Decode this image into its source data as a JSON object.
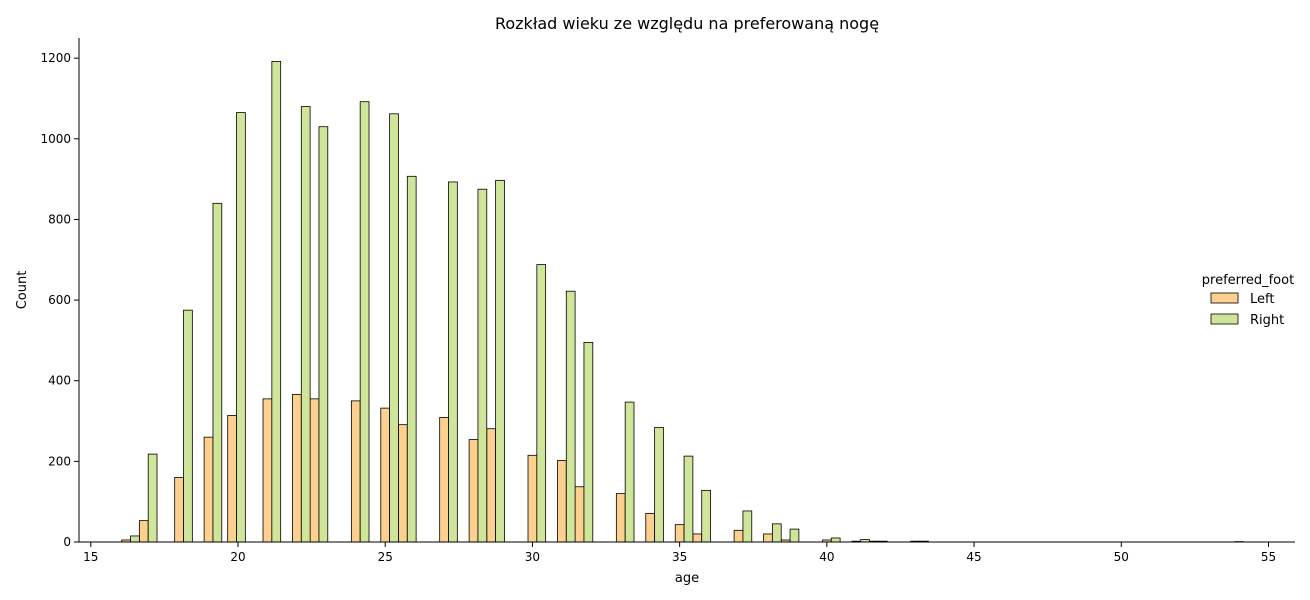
{
  "chart_data": {
    "type": "bar",
    "title": "Rozkład wieku ze względu na preferowaną nogę",
    "xlabel": "age",
    "ylabel": "Count",
    "xlim": [
      14.6,
      55.9
    ],
    "ylim": [
      0,
      1250
    ],
    "xticks": [
      15,
      20,
      25,
      30,
      35,
      40,
      45,
      50,
      55
    ],
    "yticks": [
      0,
      200,
      400,
      600,
      800,
      1000,
      1200
    ],
    "legend": {
      "title": "preferred_foot",
      "placement": "right"
    },
    "series": [
      {
        "name": "Left",
        "color": "#fdd08f",
        "x": [
          16.2,
          16.8,
          18.0,
          19.0,
          19.8,
          21.0,
          22.0,
          22.6,
          24.0,
          25.0,
          25.6,
          27.0,
          28.0,
          28.6,
          30.0,
          31.0,
          31.6,
          33.0,
          34.0,
          35.0,
          35.6,
          37.0,
          38.0,
          38.6,
          40.0,
          41.0,
          41.6,
          43.0,
          54.0
        ],
        "values": [
          5,
          53,
          160,
          260,
          314,
          355,
          366,
          355,
          350,
          332,
          291,
          309,
          254,
          281,
          215,
          202,
          137,
          120,
          71,
          43,
          20,
          29,
          20,
          5,
          5,
          2,
          2,
          2,
          1
        ]
      },
      {
        "name": "Right",
        "color": "#cfe69a",
        "x": [
          16.5,
          17.1,
          18.3,
          19.3,
          20.1,
          21.3,
          22.3,
          22.9,
          24.3,
          25.3,
          25.9,
          27.3,
          28.3,
          28.9,
          30.3,
          31.3,
          31.9,
          33.3,
          34.3,
          35.3,
          35.9,
          37.3,
          38.3,
          38.9,
          40.3,
          41.3,
          41.9,
          43.3
        ],
        "values": [
          15,
          218,
          575,
          840,
          1065,
          1192,
          1080,
          1030,
          1092,
          1062,
          907,
          893,
          875,
          897,
          688,
          622,
          495,
          347,
          284,
          213,
          128,
          77,
          45,
          32,
          10,
          6,
          2,
          2
        ]
      }
    ]
  }
}
